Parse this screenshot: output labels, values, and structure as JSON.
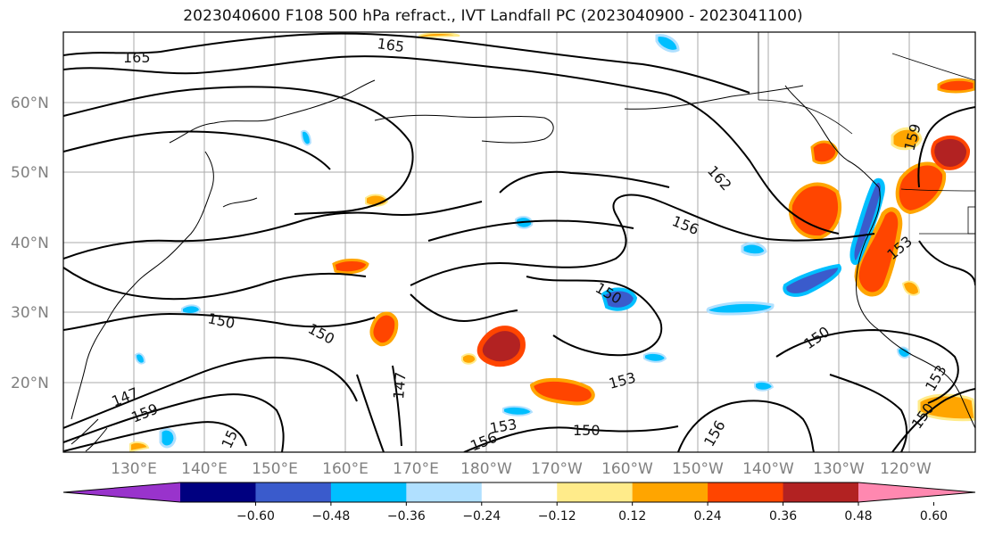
{
  "title": "2023040600 F108 500 hPa refract., IVT Landfall PC (2023040900 - 2023041100)",
  "lat_labels": [
    "60°N",
    "50°N",
    "40°N",
    "30°N",
    "20°N"
  ],
  "lon_labels": [
    "130°E",
    "140°E",
    "150°E",
    "160°E",
    "170°E",
    "180°W",
    "170°W",
    "160°W",
    "150°W",
    "140°W",
    "130°W",
    "120°W"
  ],
  "contour_labels": [
    "165",
    "165",
    "162",
    "159",
    "156",
    "153",
    "150",
    "150",
    "150",
    "150",
    "147",
    "147",
    "159",
    "150",
    "153",
    "156",
    "153",
    "150",
    "153",
    "156",
    "15"
  ],
  "colorbar": {
    "ticks": [
      "−0.60",
      "−0.48",
      "−0.36",
      "−0.24",
      "−0.12",
      "0.12",
      "0.24",
      "0.36",
      "0.48",
      "0.60"
    ],
    "colors": [
      "#9933cc",
      "#000080",
      "#3a5bcc",
      "#00bfff",
      "#b0e0ff",
      "#ffffff",
      "#ffeb8a",
      "#ffa500",
      "#ff4500",
      "#b22222",
      "#ff88b0"
    ]
  }
}
